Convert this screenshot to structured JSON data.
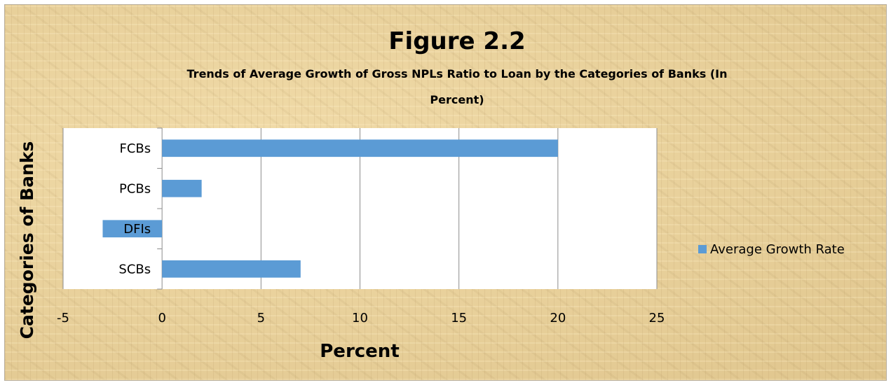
{
  "chart_data": {
    "type": "bar",
    "orientation": "horizontal",
    "title": "Figure 2.2",
    "subtitle_lines": [
      "Trends of Average Growth of Gross NPLs Ratio to  Loan by the Categories of Banks (In",
      "Percent)"
    ],
    "categories": [
      "FCBs",
      "PCBs",
      "DFIs",
      "SCBs"
    ],
    "series": [
      {
        "name": "Average Growth Rate",
        "values": [
          20,
          2,
          -3,
          7
        ],
        "color": "#5b9bd5"
      }
    ],
    "xlabel": "Percent",
    "ylabel": "Categories of Banks",
    "xlim": [
      -5,
      25
    ],
    "xticks": [
      "-5",
      "0",
      "5",
      "10",
      "15",
      "20",
      "25"
    ],
    "grid": true,
    "legend_position": "right"
  }
}
